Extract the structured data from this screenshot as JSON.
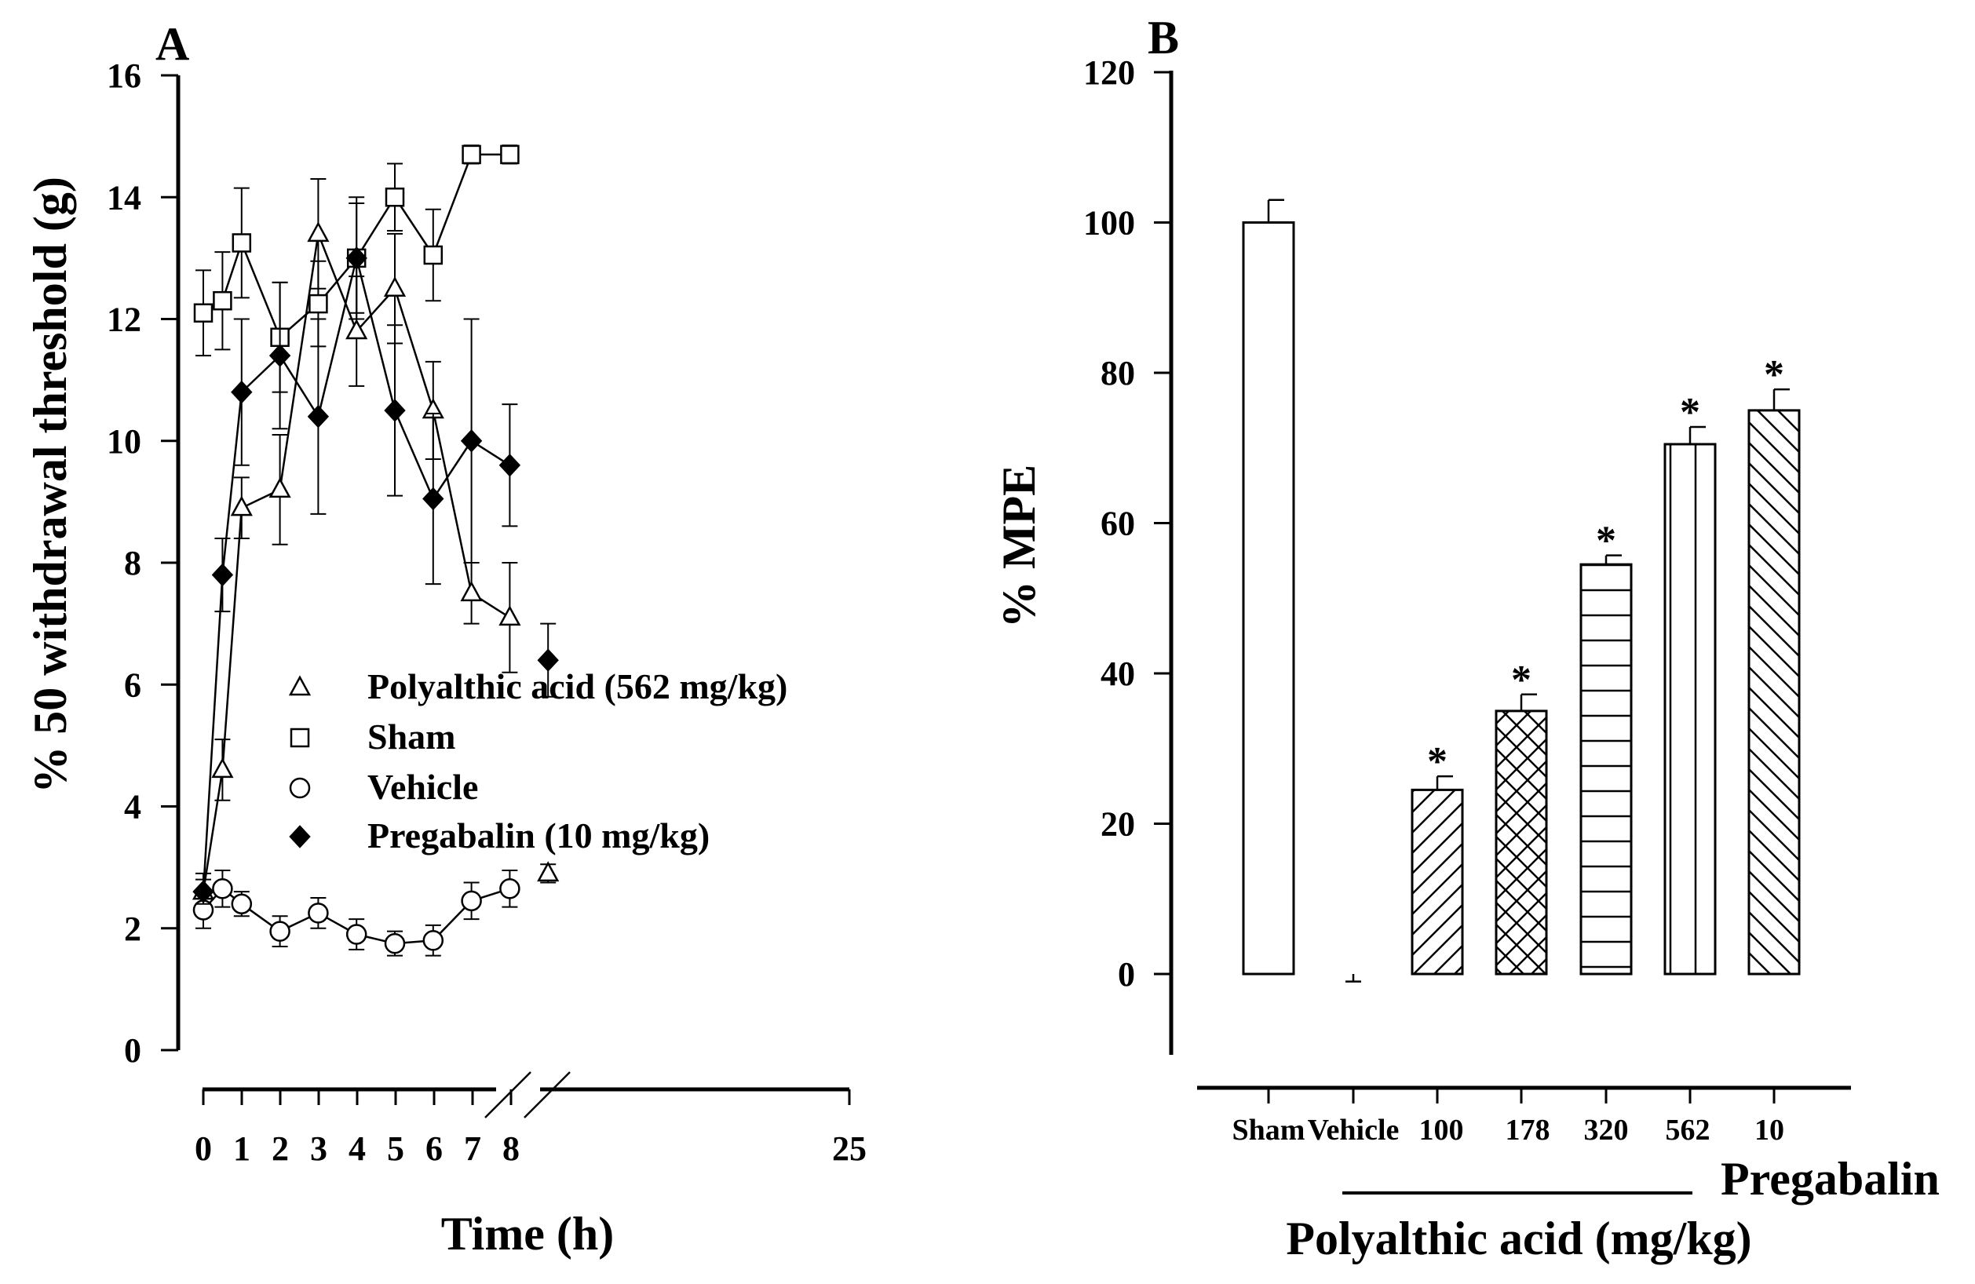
{
  "chart_data": [
    {
      "panel": "A",
      "type": "line",
      "xlabel": "Time (h)",
      "ylabel": "% 50 withdrawal threshold (g)",
      "ylim": [
        0,
        16
      ],
      "yticks": [
        0,
        2,
        4,
        6,
        8,
        10,
        12,
        14,
        16
      ],
      "xticks": [
        "0",
        "1",
        "2",
        "3",
        "4",
        "5",
        "6",
        "7",
        "8",
        "25"
      ],
      "axis_break": "between 8 and 25",
      "legend_position": "center",
      "series": [
        {
          "name": "Polyalthic acid (562 mg/kg)",
          "marker": "open-triangle",
          "points": [
            {
              "x": 0,
              "y": 2.6,
              "err": 0.3
            },
            {
              "x": 0.5,
              "y": 4.6,
              "err": 0.5
            },
            {
              "x": 1,
              "y": 8.9,
              "err": 0.5
            },
            {
              "x": 2,
              "y": 9.2,
              "err": 0.9
            },
            {
              "x": 3,
              "y": 13.4,
              "err": 0.9
            },
            {
              "x": 4,
              "y": 11.8,
              "err": 0.9
            },
            {
              "x": 5,
              "y": 12.5,
              "err": 0.9
            },
            {
              "x": 6,
              "y": 10.5,
              "err": 0.8
            },
            {
              "x": 7,
              "y": 7.5,
              "err": 0.5
            },
            {
              "x": 8,
              "y": 7.1,
              "err": 0.9
            },
            {
              "x": 9,
              "y": 2.9,
              "err": 0.15,
              "connected": false
            }
          ]
        },
        {
          "name": "Sham",
          "marker": "open-square",
          "points": [
            {
              "x": 0,
              "y": 12.1,
              "err": 0.7
            },
            {
              "x": 0.5,
              "y": 12.3,
              "err": 0.8
            },
            {
              "x": 1,
              "y": 13.25,
              "err": 0.9
            },
            {
              "x": 2,
              "y": 11.7,
              "err": 0.9
            },
            {
              "x": 3,
              "y": 12.25,
              "err": 0.7
            },
            {
              "x": 4,
              "y": 13.0,
              "err": 1.0
            },
            {
              "x": 5,
              "y": 14.0,
              "err": 0.55
            },
            {
              "x": 6,
              "y": 13.05,
              "err": 0.75
            },
            {
              "x": 7,
              "y": 14.7,
              "err": 0.15
            },
            {
              "x": 8,
              "y": 14.7,
              "err": 0.15
            }
          ]
        },
        {
          "name": "Vehicle",
          "marker": "open-circle",
          "points": [
            {
              "x": 0,
              "y": 2.3,
              "err": 0.3
            },
            {
              "x": 0.5,
              "y": 2.65,
              "err": 0.3
            },
            {
              "x": 1,
              "y": 2.4,
              "err": 0.2
            },
            {
              "x": 2,
              "y": 1.95,
              "err": 0.25
            },
            {
              "x": 3,
              "y": 2.25,
              "err": 0.25
            },
            {
              "x": 4,
              "y": 1.9,
              "err": 0.25
            },
            {
              "x": 5,
              "y": 1.75,
              "err": 0.2
            },
            {
              "x": 6,
              "y": 1.8,
              "err": 0.25
            },
            {
              "x": 7,
              "y": 2.45,
              "err": 0.3
            },
            {
              "x": 8,
              "y": 2.65,
              "err": 0.3
            }
          ]
        },
        {
          "name": "Pregabalin (10 mg/kg)",
          "marker": "filled-diamond",
          "points": [
            {
              "x": 0,
              "y": 2.6,
              "err": 0.2
            },
            {
              "x": 0.5,
              "y": 7.8,
              "err": 0.6
            },
            {
              "x": 1,
              "y": 10.8,
              "err": 1.2
            },
            {
              "x": 2,
              "y": 11.4,
              "err": 1.2
            },
            {
              "x": 3,
              "y": 10.4,
              "err": 1.6
            },
            {
              "x": 4,
              "y": 13.0,
              "err": 0.9
            },
            {
              "x": 5,
              "y": 10.5,
              "err": 1.4
            },
            {
              "x": 6,
              "y": 9.05,
              "err": 1.4
            },
            {
              "x": 7,
              "y": 10.0,
              "err": 2.0
            },
            {
              "x": 8,
              "y": 9.6,
              "err": 1.0
            },
            {
              "x": 9,
              "y": 6.4,
              "err": 0.6,
              "connected": false
            }
          ]
        }
      ]
    },
    {
      "panel": "B",
      "type": "bar",
      "ylabel": "% MPE",
      "ylim": [
        -10,
        120
      ],
      "yticks": [
        0,
        20,
        40,
        60,
        80,
        100,
        120
      ],
      "categories": [
        "Sham",
        "Vehicle",
        "100",
        "178",
        "320",
        "562",
        "10"
      ],
      "values": [
        100,
        0,
        24.5,
        35,
        54.5,
        70.5,
        75
      ],
      "errors": [
        3,
        1,
        1.8,
        2.2,
        1.2,
        2.3,
        2.8
      ],
      "patterns": [
        "none",
        "none",
        "diagonal",
        "crosshatch",
        "horizontal",
        "vertical",
        "backdiagonal"
      ],
      "significance": [
        "",
        "",
        "*",
        "*",
        "*",
        "*",
        "*"
      ],
      "group_labels": {
        "polyalthic": "Polyalthic acid (mg/kg)",
        "pregabalin": "Pregabalin"
      }
    }
  ]
}
